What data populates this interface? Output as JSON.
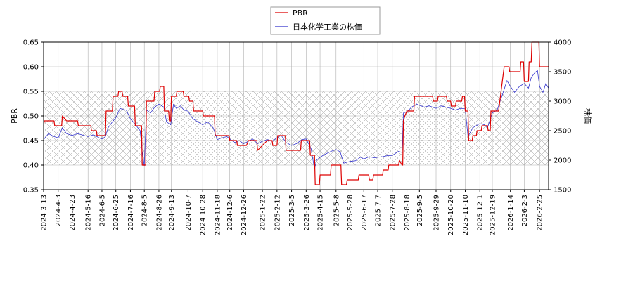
{
  "chart_data": {
    "type": "line",
    "legend": {
      "placement": "top-center",
      "entries": [
        {
          "label": "PBR",
          "color": "#dd0000"
        },
        {
          "label": "日本化学工業の株価",
          "color": "#3333cc"
        }
      ]
    },
    "ylabel_left": "PBR",
    "ylabel_right": "株価",
    "ylim_left": [
      0.35,
      0.65
    ],
    "ylim_right": [
      1500,
      4000
    ],
    "yticks_left": [
      "0.35",
      "0.40",
      "0.45",
      "0.50",
      "0.55",
      "0.60",
      "0.65"
    ],
    "yticks_right": [
      "1500",
      "2000",
      "2500",
      "3000",
      "3500",
      "4000"
    ],
    "shaded_band_pbr": [
      0.4,
      0.55
    ],
    "grid": true,
    "x_range": [
      "2024-03-13",
      "2026-03-10"
    ],
    "xticks": [
      "2024-3-13",
      "2024-4-3",
      "2024-4-23",
      "2024-5-16",
      "2024-6-5",
      "2024-6-25",
      "2024-7-16",
      "2024-8-5",
      "2024-8-26",
      "2024-9-13",
      "2024-10-7",
      "2024-10-28",
      "2024-11-18",
      "2024-12-6",
      "2024-12-26",
      "2025-1-22",
      "2025-2-12",
      "2025-3-5",
      "2025-3-26",
      "2025-4-15",
      "2025-5-8",
      "2025-5-28",
      "2025-6-17",
      "2025-7-7",
      "2025-7-28",
      "2025-8-18",
      "2025-9-5",
      "2025-9-29",
      "2025-10-20",
      "2025-11-10",
      "2025-12-1",
      "2025-12-19",
      "2026-1-14",
      "2026-2-3",
      "2026-2-25"
    ],
    "series": [
      {
        "name": "PBR",
        "axis": "left",
        "color": "#dd0000",
        "points": [
          [
            "2024-03-13",
            0.48
          ],
          [
            "2024-03-14",
            0.49
          ],
          [
            "2024-03-28",
            0.49
          ],
          [
            "2024-03-29",
            0.48
          ],
          [
            "2024-04-08",
            0.48
          ],
          [
            "2024-04-09",
            0.5
          ],
          [
            "2024-04-15",
            0.49
          ],
          [
            "2024-05-01",
            0.49
          ],
          [
            "2024-05-02",
            0.48
          ],
          [
            "2024-05-20",
            0.48
          ],
          [
            "2024-05-21",
            0.47
          ],
          [
            "2024-05-28",
            0.47
          ],
          [
            "2024-05-29",
            0.46
          ],
          [
            "2024-06-10",
            0.46
          ],
          [
            "2024-06-11",
            0.51
          ],
          [
            "2024-06-20",
            0.51
          ],
          [
            "2024-06-21",
            0.54
          ],
          [
            "2024-06-28",
            0.54
          ],
          [
            "2024-06-29",
            0.55
          ],
          [
            "2024-07-04",
            0.55
          ],
          [
            "2024-07-05",
            0.54
          ],
          [
            "2024-07-12",
            0.54
          ],
          [
            "2024-07-13",
            0.52
          ],
          [
            "2024-07-22",
            0.52
          ],
          [
            "2024-07-23",
            0.48
          ],
          [
            "2024-08-01",
            0.48
          ],
          [
            "2024-08-02",
            0.4
          ],
          [
            "2024-08-07",
            0.4
          ],
          [
            "2024-08-08",
            0.53
          ],
          [
            "2024-08-19",
            0.53
          ],
          [
            "2024-08-20",
            0.55
          ],
          [
            "2024-08-27",
            0.55
          ],
          [
            "2024-08-28",
            0.56
          ],
          [
            "2024-09-02",
            0.56
          ],
          [
            "2024-09-03",
            0.51
          ],
          [
            "2024-09-09",
            0.51
          ],
          [
            "2024-09-10",
            0.49
          ],
          [
            "2024-09-12",
            0.49
          ],
          [
            "2024-09-13",
            0.54
          ],
          [
            "2024-09-20",
            0.54
          ],
          [
            "2024-09-21",
            0.55
          ],
          [
            "2024-09-30",
            0.55
          ],
          [
            "2024-10-01",
            0.54
          ],
          [
            "2024-10-08",
            0.54
          ],
          [
            "2024-10-09",
            0.53
          ],
          [
            "2024-10-14",
            0.53
          ],
          [
            "2024-10-15",
            0.51
          ],
          [
            "2024-10-28",
            0.51
          ],
          [
            "2024-10-29",
            0.5
          ],
          [
            "2024-11-14",
            0.5
          ],
          [
            "2024-11-15",
            0.46
          ],
          [
            "2024-12-05",
            0.46
          ],
          [
            "2024-12-06",
            0.45
          ],
          [
            "2024-12-16",
            0.45
          ],
          [
            "2024-12-17",
            0.44
          ],
          [
            "2024-12-30",
            0.44
          ],
          [
            "2025-01-02",
            0.45
          ],
          [
            "2025-01-14",
            0.45
          ],
          [
            "2025-01-15",
            0.43
          ],
          [
            "2025-01-22",
            0.44
          ],
          [
            "2025-01-29",
            0.45
          ],
          [
            "2025-02-05",
            0.45
          ],
          [
            "2025-02-06",
            0.44
          ],
          [
            "2025-02-12",
            0.44
          ],
          [
            "2025-02-13",
            0.46
          ],
          [
            "2025-02-24",
            0.46
          ],
          [
            "2025-02-25",
            0.43
          ],
          [
            "2025-03-18",
            0.43
          ],
          [
            "2025-03-19",
            0.45
          ],
          [
            "2025-03-31",
            0.45
          ],
          [
            "2025-04-01",
            0.42
          ],
          [
            "2025-04-07",
            0.42
          ],
          [
            "2025-04-08",
            0.36
          ],
          [
            "2025-04-14",
            0.36
          ],
          [
            "2025-04-15",
            0.38
          ],
          [
            "2025-04-30",
            0.38
          ],
          [
            "2025-05-01",
            0.4
          ],
          [
            "2025-05-15",
            0.4
          ],
          [
            "2025-05-16",
            0.36
          ],
          [
            "2025-05-23",
            0.36
          ],
          [
            "2025-05-24",
            0.37
          ],
          [
            "2025-06-09",
            0.37
          ],
          [
            "2025-06-10",
            0.38
          ],
          [
            "2025-06-24",
            0.38
          ],
          [
            "2025-06-25",
            0.37
          ],
          [
            "2025-06-30",
            0.37
          ],
          [
            "2025-07-01",
            0.38
          ],
          [
            "2025-07-14",
            0.38
          ],
          [
            "2025-07-15",
            0.39
          ],
          [
            "2025-07-22",
            0.39
          ],
          [
            "2025-07-23",
            0.4
          ],
          [
            "2025-08-06",
            0.4
          ],
          [
            "2025-08-07",
            0.41
          ],
          [
            "2025-08-11",
            0.4
          ],
          [
            "2025-08-12",
            0.4
          ],
          [
            "2025-08-13",
            0.49
          ],
          [
            "2025-08-15",
            0.5
          ],
          [
            "2025-08-18",
            0.51
          ],
          [
            "2025-08-28",
            0.51
          ],
          [
            "2025-08-29",
            0.54
          ],
          [
            "2025-09-24",
            0.54
          ],
          [
            "2025-09-25",
            0.53
          ],
          [
            "2025-10-01",
            0.53
          ],
          [
            "2025-10-02",
            0.54
          ],
          [
            "2025-10-14",
            0.54
          ],
          [
            "2025-10-15",
            0.53
          ],
          [
            "2025-10-20",
            0.53
          ],
          [
            "2025-10-21",
            0.52
          ],
          [
            "2025-10-27",
            0.52
          ],
          [
            "2025-10-28",
            0.53
          ],
          [
            "2025-11-05",
            0.53
          ],
          [
            "2025-11-06",
            0.54
          ],
          [
            "2025-11-09",
            0.54
          ],
          [
            "2025-11-10",
            0.51
          ],
          [
            "2025-11-14",
            0.51
          ],
          [
            "2025-11-15",
            0.45
          ],
          [
            "2025-11-20",
            0.45
          ],
          [
            "2025-11-21",
            0.46
          ],
          [
            "2025-11-26",
            0.46
          ],
          [
            "2025-11-27",
            0.47
          ],
          [
            "2025-12-03",
            0.47
          ],
          [
            "2025-12-04",
            0.48
          ],
          [
            "2025-12-12",
            0.48
          ],
          [
            "2025-12-13",
            0.47
          ],
          [
            "2025-12-16",
            0.47
          ],
          [
            "2025-12-17",
            0.51
          ],
          [
            "2025-12-28",
            0.51
          ],
          [
            "2026-01-05",
            0.6
          ],
          [
            "2026-01-12",
            0.6
          ],
          [
            "2026-01-13",
            0.59
          ],
          [
            "2026-01-28",
            0.59
          ],
          [
            "2026-01-29",
            0.61
          ],
          [
            "2026-02-02",
            0.61
          ],
          [
            "2026-02-03",
            0.57
          ],
          [
            "2026-02-09",
            0.57
          ],
          [
            "2026-02-10",
            0.61
          ],
          [
            "2026-02-13",
            0.61
          ],
          [
            "2026-02-14",
            0.65
          ],
          [
            "2026-02-24",
            0.65
          ],
          [
            "2026-02-25",
            0.6
          ],
          [
            "2026-03-10",
            0.6
          ]
        ]
      },
      {
        "name": "日本化学工業の株価",
        "axis": "right",
        "color": "#3333cc",
        "points": [
          [
            "2024-03-13",
            2350
          ],
          [
            "2024-03-20",
            2450
          ],
          [
            "2024-03-28",
            2400
          ],
          [
            "2024-04-03",
            2380
          ],
          [
            "2024-04-09",
            2550
          ],
          [
            "2024-04-15",
            2450
          ],
          [
            "2024-04-23",
            2420
          ],
          [
            "2024-05-01",
            2450
          ],
          [
            "2024-05-10",
            2420
          ],
          [
            "2024-05-16",
            2400
          ],
          [
            "2024-05-24",
            2430
          ],
          [
            "2024-06-01",
            2380
          ],
          [
            "2024-06-05",
            2360
          ],
          [
            "2024-06-10",
            2400
          ],
          [
            "2024-06-14",
            2550
          ],
          [
            "2024-06-20",
            2650
          ],
          [
            "2024-06-25",
            2720
          ],
          [
            "2024-07-01",
            2880
          ],
          [
            "2024-07-05",
            2860
          ],
          [
            "2024-07-10",
            2850
          ],
          [
            "2024-07-16",
            2700
          ],
          [
            "2024-07-22",
            2620
          ],
          [
            "2024-07-30",
            2500
          ],
          [
            "2024-08-02",
            2150
          ],
          [
            "2024-08-05",
            1900
          ],
          [
            "2024-08-08",
            2850
          ],
          [
            "2024-08-14",
            2800
          ],
          [
            "2024-08-20",
            2900
          ],
          [
            "2024-08-26",
            2950
          ],
          [
            "2024-09-02",
            2900
          ],
          [
            "2024-09-06",
            2650
          ],
          [
            "2024-09-12",
            2600
          ],
          [
            "2024-09-16",
            2950
          ],
          [
            "2024-09-20",
            2880
          ],
          [
            "2024-09-26",
            2920
          ],
          [
            "2024-10-01",
            2850
          ],
          [
            "2024-10-07",
            2830
          ],
          [
            "2024-10-14",
            2700
          ],
          [
            "2024-10-21",
            2650
          ],
          [
            "2024-10-28",
            2600
          ],
          [
            "2024-11-04",
            2650
          ],
          [
            "2024-11-12",
            2550
          ],
          [
            "2024-11-18",
            2350
          ],
          [
            "2024-11-25",
            2380
          ],
          [
            "2024-12-02",
            2400
          ],
          [
            "2024-12-06",
            2360
          ],
          [
            "2024-12-13",
            2300
          ],
          [
            "2024-12-20",
            2330
          ],
          [
            "2024-12-26",
            2280
          ],
          [
            "2025-01-08",
            2360
          ],
          [
            "2025-01-15",
            2280
          ],
          [
            "2025-01-22",
            2320
          ],
          [
            "2025-01-29",
            2350
          ],
          [
            "2025-02-05",
            2320
          ],
          [
            "2025-02-12",
            2380
          ],
          [
            "2025-02-18",
            2420
          ],
          [
            "2025-02-25",
            2300
          ],
          [
            "2025-03-05",
            2250
          ],
          [
            "2025-03-12",
            2280
          ],
          [
            "2025-03-20",
            2350
          ],
          [
            "2025-03-26",
            2360
          ],
          [
            "2025-04-02",
            2200
          ],
          [
            "2025-04-07",
            1850
          ],
          [
            "2025-04-10",
            2000
          ],
          [
            "2025-04-15",
            2050
          ],
          [
            "2025-04-22",
            2100
          ],
          [
            "2025-05-01",
            2150
          ],
          [
            "2025-05-08",
            2180
          ],
          [
            "2025-05-14",
            2140
          ],
          [
            "2025-05-19",
            1950
          ],
          [
            "2025-05-28",
            1980
          ],
          [
            "2025-06-05",
            1990
          ],
          [
            "2025-06-12",
            2050
          ],
          [
            "2025-06-17",
            2020
          ],
          [
            "2025-06-25",
            2060
          ],
          [
            "2025-07-02",
            2040
          ],
          [
            "2025-07-07",
            2050
          ],
          [
            "2025-07-14",
            2060
          ],
          [
            "2025-07-22",
            2080
          ],
          [
            "2025-07-28",
            2080
          ],
          [
            "2025-08-06",
            2150
          ],
          [
            "2025-08-11",
            2130
          ],
          [
            "2025-08-13",
            2800
          ],
          [
            "2025-08-18",
            2820
          ],
          [
            "2025-08-25",
            2900
          ],
          [
            "2025-09-01",
            2950
          ],
          [
            "2025-09-05",
            2930
          ],
          [
            "2025-09-12",
            2900
          ],
          [
            "2025-09-19",
            2920
          ],
          [
            "2025-09-29",
            2880
          ],
          [
            "2025-10-06",
            2920
          ],
          [
            "2025-10-13",
            2900
          ],
          [
            "2025-10-20",
            2880
          ],
          [
            "2025-10-27",
            2850
          ],
          [
            "2025-11-03",
            2880
          ],
          [
            "2025-11-10",
            2870
          ],
          [
            "2025-11-14",
            2400
          ],
          [
            "2025-11-21",
            2550
          ],
          [
            "2025-12-01",
            2620
          ],
          [
            "2025-12-08",
            2600
          ],
          [
            "2025-12-12",
            2550
          ],
          [
            "2025-12-19",
            2800
          ],
          [
            "2025-12-26",
            2850
          ],
          [
            "2026-01-05",
            3200
          ],
          [
            "2026-01-09",
            3350
          ],
          [
            "2026-01-14",
            3250
          ],
          [
            "2026-01-20",
            3150
          ],
          [
            "2026-01-27",
            3250
          ],
          [
            "2026-02-03",
            3300
          ],
          [
            "2026-02-09",
            3220
          ],
          [
            "2026-02-13",
            3400
          ],
          [
            "2026-02-18",
            3480
          ],
          [
            "2026-02-22",
            3520
          ],
          [
            "2026-02-25",
            3250
          ],
          [
            "2026-03-02",
            3150
          ],
          [
            "2026-03-06",
            3300
          ],
          [
            "2026-03-10",
            3220
          ]
        ]
      }
    ]
  }
}
